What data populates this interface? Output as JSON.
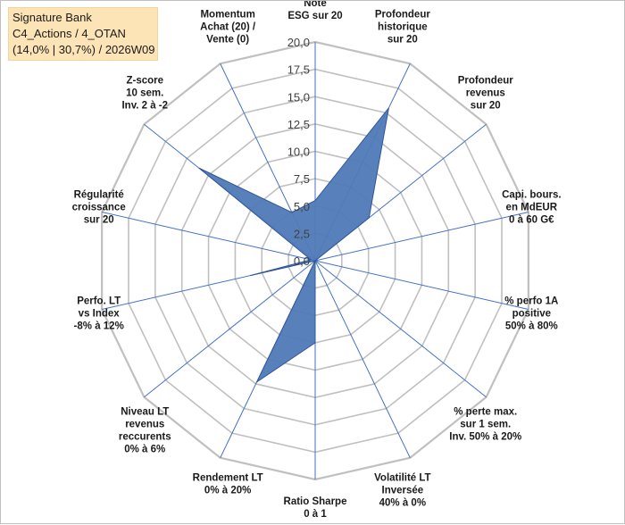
{
  "header": {
    "line1": "Signature Bank",
    "line2": "C4_Actions / 4_OTAN",
    "line3": "(14,0% | 30,7%) / 2026W09"
  },
  "colors": {
    "series_fill": "#4f7ab8",
    "series_stroke": "#2f5597",
    "grid": "#c0c0c0",
    "axis": "#4472c4",
    "title_bg": "#fce4b6"
  },
  "chart_data": {
    "type": "radar",
    "r_range": [
      0,
      20
    ],
    "ticks": [
      "0,0",
      "2,5",
      "5,0",
      "7,5",
      "10,0",
      "12,5",
      "15,0",
      "17,5",
      "20,0"
    ],
    "axes": [
      {
        "name": "esg",
        "lines": [
          "Note",
          "ESG sur 20"
        ]
      },
      {
        "name": "histo",
        "lines": [
          "Profondeur",
          "historique",
          "sur 20"
        ]
      },
      {
        "name": "revenus",
        "lines": [
          "Profondeur",
          "revenus",
          "sur 20"
        ]
      },
      {
        "name": "capi",
        "lines": [
          "Capi. bours.",
          "en MdEUR",
          "0 à 60 G€"
        ]
      },
      {
        "name": "perf1a",
        "lines": [
          "% perfo 1A",
          "positive",
          "50% à 80%"
        ]
      },
      {
        "name": "perte",
        "lines": [
          "% perte max.",
          "sur 1 sem.",
          "Inv. 50% à 20%"
        ]
      },
      {
        "name": "volat",
        "lines": [
          "Volatilité LT",
          "Inversée",
          "40% à 0%"
        ]
      },
      {
        "name": "sharpe",
        "lines": [
          "Ratio Sharpe",
          "0 à 1"
        ]
      },
      {
        "name": "rendement",
        "lines": [
          "Rendement LT",
          "0% à 20%"
        ]
      },
      {
        "name": "niveau",
        "lines": [
          "Niveau LT",
          "revenus",
          "reccurents",
          "0% à 6%"
        ]
      },
      {
        "name": "perfolt",
        "lines": [
          "Perfo. LT",
          "vs Index",
          "-8% à 12%"
        ]
      },
      {
        "name": "regularite",
        "lines": [
          "Régularité",
          "croissance",
          "sur 20"
        ]
      },
      {
        "name": "zscore",
        "lines": [
          "Z-score",
          "10 sem.",
          "Inv. 2 à -2"
        ]
      },
      {
        "name": "momentum",
        "lines": [
          "Momentum",
          "Achat (20) /",
          "Vente (0)"
        ]
      }
    ],
    "series": [
      {
        "name": "Signature Bank",
        "values": [
          5.5,
          15.5,
          6.3,
          0,
          0,
          0,
          0,
          7.5,
          12.3,
          0,
          6.1,
          0.4,
          13.6,
          4.9
        ]
      }
    ]
  }
}
